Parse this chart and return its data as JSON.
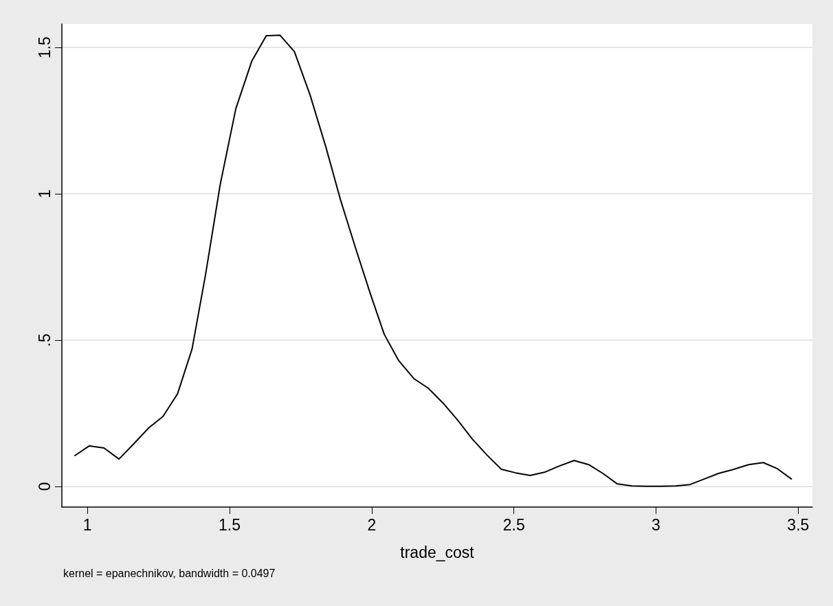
{
  "chart_data": {
    "type": "line",
    "xlabel": "trade_cost",
    "annotations": [
      "kernel = epanechnikov, bandwidth = 0.0497"
    ],
    "x": [
      0.956,
      1.007,
      1.058,
      1.111,
      1.16,
      1.215,
      1.266,
      1.317,
      1.368,
      1.416,
      1.467,
      1.522,
      1.578,
      1.629,
      1.677,
      1.728,
      1.783,
      1.839,
      1.89,
      1.945,
      1.996,
      2.044,
      2.095,
      2.148,
      2.199,
      2.252,
      2.303,
      2.354,
      2.405,
      2.456,
      2.506,
      2.557,
      2.608,
      2.659,
      2.712,
      2.763,
      2.813,
      2.864,
      2.915,
      2.966,
      3.016,
      3.07,
      3.12,
      3.17,
      3.22,
      3.27,
      3.326,
      3.377,
      3.427,
      3.476
    ],
    "series": [
      {
        "color": "#000000",
        "values": [
          0.106,
          0.139,
          0.132,
          0.094,
          0.143,
          0.2,
          0.24,
          0.317,
          0.47,
          0.727,
          1.032,
          1.291,
          1.453,
          1.54,
          1.542,
          1.486,
          1.338,
          1.159,
          0.98,
          0.809,
          0.656,
          0.52,
          0.43,
          0.369,
          0.336,
          0.284,
          0.226,
          0.162,
          0.108,
          0.059,
          0.047,
          0.038,
          0.049,
          0.07,
          0.089,
          0.075,
          0.045,
          0.009,
          0.002,
          0.001,
          0.001,
          0.002,
          0.007,
          0.026,
          0.045,
          0.058,
          0.075,
          0.082,
          0.061,
          0.026
        ]
      }
    ],
    "xlim": [
      0.91,
      3.55
    ],
    "xticks": [
      1,
      1.5,
      2,
      2.5,
      3,
      3.5
    ],
    "ylim": [
      -0.07,
      1.58
    ],
    "yticks": [
      0,
      {
        "value": 0.5,
        "label": ".5"
      },
      1,
      1.5
    ],
    "grid": "y",
    "marker": "none",
    "line_style": "solid"
  }
}
